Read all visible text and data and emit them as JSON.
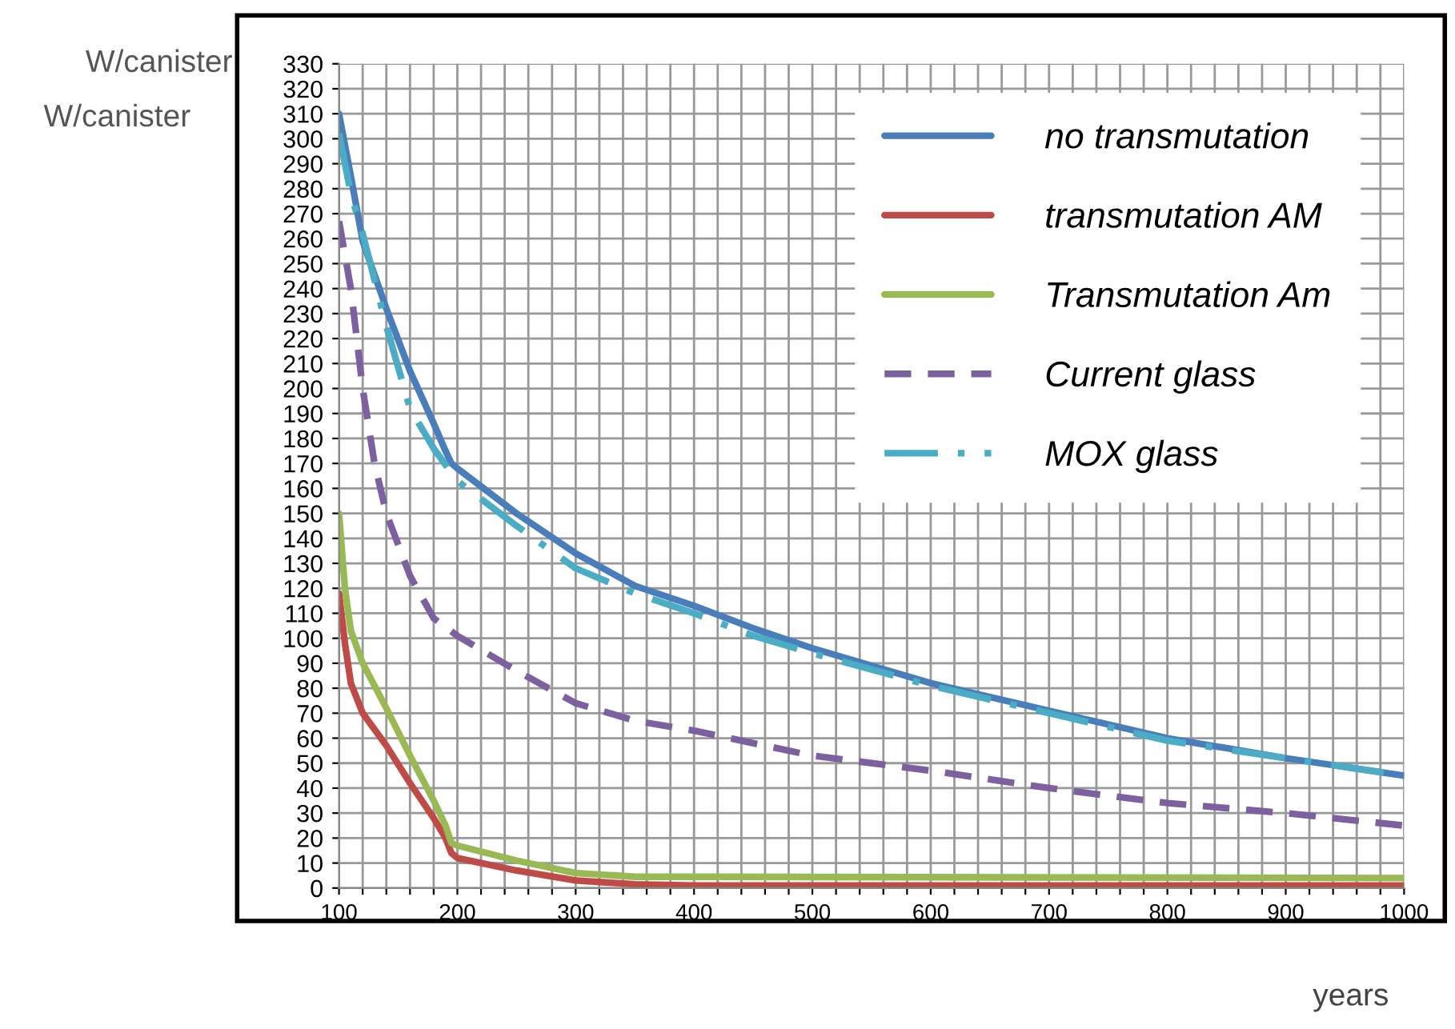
{
  "chart_data": {
    "type": "line",
    "xlabel": "years",
    "ylabel": "W/canister",
    "annotations": [
      "W/canister"
    ],
    "xlim": [
      100,
      1000
    ],
    "ylim": [
      0,
      330
    ],
    "xticks": [
      100,
      {
        "value": 120,
        "label": null
      },
      {
        "value": 140,
        "label": null
      },
      {
        "value": 160,
        "label": null
      },
      {
        "value": 180,
        "label": null
      },
      200,
      {
        "value": 220,
        "label": null
      },
      {
        "value": 240,
        "label": null
      },
      {
        "value": 260,
        "label": null
      },
      {
        "value": 280,
        "label": null
      },
      300,
      {
        "value": 320,
        "label": null
      },
      {
        "value": 340,
        "label": null
      },
      {
        "value": 360,
        "label": null
      },
      {
        "value": 380,
        "label": null
      },
      400,
      {
        "value": 420,
        "label": null
      },
      {
        "value": 440,
        "label": null
      },
      {
        "value": 460,
        "label": null
      },
      {
        "value": 480,
        "label": null
      },
      500,
      {
        "value": 520,
        "label": null
      },
      {
        "value": 540,
        "label": null
      },
      {
        "value": 560,
        "label": null
      },
      {
        "value": 580,
        "label": null
      },
      600,
      {
        "value": 620,
        "label": null
      },
      {
        "value": 640,
        "label": null
      },
      {
        "value": 660,
        "label": null
      },
      {
        "value": 680,
        "label": null
      },
      700,
      {
        "value": 720,
        "label": null
      },
      {
        "value": 740,
        "label": null
      },
      {
        "value": 760,
        "label": null
      },
      {
        "value": 780,
        "label": null
      },
      800,
      {
        "value": 820,
        "label": null
      },
      {
        "value": 840,
        "label": null
      },
      {
        "value": 860,
        "label": null
      },
      {
        "value": 880,
        "label": null
      },
      900,
      {
        "value": 920,
        "label": null
      },
      {
        "value": 940,
        "label": null
      },
      {
        "value": 960,
        "label": null
      },
      {
        "value": 980,
        "label": null
      },
      1000
    ],
    "yticks": [
      0,
      10,
      20,
      30,
      40,
      50,
      60,
      70,
      80,
      90,
      100,
      110,
      120,
      130,
      140,
      150,
      160,
      170,
      180,
      190,
      200,
      210,
      220,
      230,
      240,
      250,
      260,
      270,
      280,
      290,
      300,
      310,
      320,
      330
    ],
    "grid": true,
    "legend": "top right",
    "marker": "none",
    "series": [
      {
        "name": "no transmutation",
        "color": "#4a7ebb",
        "line_style": "solid",
        "x": [
          100,
          110,
          120,
          140,
          160,
          180,
          190,
          195,
          200,
          250,
          300,
          350,
          400,
          450,
          500,
          600,
          700,
          800,
          900,
          1000
        ],
        "values": [
          310,
          285,
          259,
          232,
          207,
          186,
          175,
          170,
          168,
          150,
          134,
          121,
          113,
          104,
          96,
          82,
          71,
          60,
          52,
          45
        ]
      },
      {
        "name": "transmutation AM",
        "color": "#be4b48",
        "line_style": "solid",
        "x": [
          100,
          105,
          110,
          120,
          140,
          160,
          180,
          190,
          195,
          200,
          250,
          300,
          350,
          400,
          1000
        ],
        "values": [
          118,
          98,
          82,
          70,
          57,
          42,
          28,
          20,
          14,
          12,
          7,
          3,
          1.5,
          1,
          1
        ]
      },
      {
        "name": "Transmutation Am",
        "color": "#98b954",
        "line_style": "solid",
        "x": [
          100,
          105,
          110,
          120,
          140,
          160,
          180,
          190,
          195,
          200,
          250,
          300,
          350,
          400,
          1000
        ],
        "values": [
          150,
          120,
          103,
          90,
          72,
          53,
          35,
          25,
          18,
          17,
          11,
          6,
          4.5,
          4.5,
          4
        ]
      },
      {
        "name": "Current glass",
        "color": "#7d60a0",
        "line_style": "dashed",
        "x": [
          100,
          110,
          120,
          130,
          140,
          160,
          180,
          200,
          250,
          300,
          350,
          400,
          500,
          600,
          700,
          800,
          900,
          1000
        ],
        "values": [
          267,
          240,
          200,
          170,
          150,
          125,
          108,
          101,
          87,
          74,
          67,
          63,
          53,
          47,
          40,
          34,
          30,
          25
        ]
      },
      {
        "name": "MOX glass",
        "color": "#4bacc6",
        "line_style": "dashdot",
        "x": [
          100,
          110,
          120,
          140,
          160,
          180,
          200,
          250,
          300,
          350,
          400,
          450,
          500,
          600,
          700,
          800,
          900,
          1000
        ],
        "values": [
          302,
          278,
          262,
          225,
          192,
          176,
          163,
          145,
          128,
          118,
          110,
          101,
          94,
          81,
          70,
          59,
          52,
          45
        ]
      }
    ]
  }
}
